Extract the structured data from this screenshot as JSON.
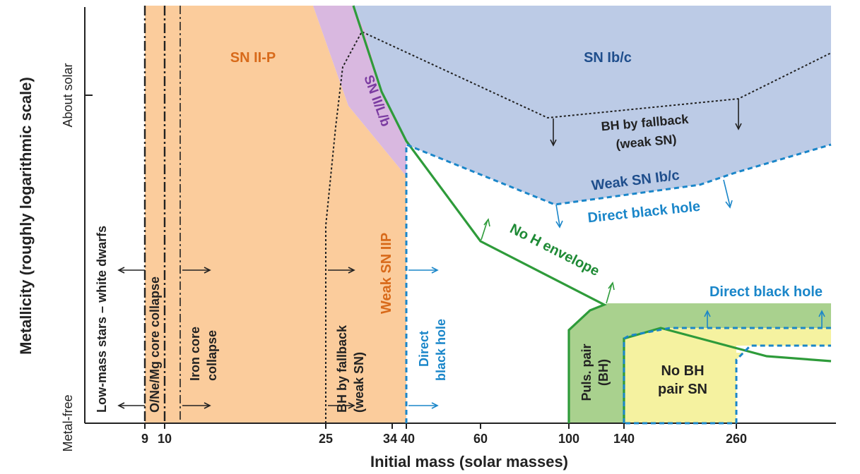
{
  "axes": {
    "x_label": "Initial mass (solar masses)",
    "y_label": "Metallicity (roughly logarithmic scale)",
    "x_ticks": [
      "9",
      "10",
      "25",
      "34",
      "40",
      "60",
      "100",
      "140",
      "260"
    ],
    "y_ticks": [
      "Metal-free",
      "About solar"
    ]
  },
  "regions": {
    "sn_iip": "SN II-P",
    "sn_iil_b": "SN II/L/b",
    "sn_ibc": "SN Ib/c",
    "bh_fallback_top_1": "BH by fallback",
    "bh_fallback_top_2": "(weak SN)",
    "weak_sn_ibc": "Weak SN Ib/c",
    "direct_bh_top": "Direct black hole",
    "weak_sn_iip": "Weak SN IIP",
    "no_h_envelope": "No H envelope",
    "direct_bh_right": "Direct black hole",
    "puls_pair_1": "Puls. pair",
    "puls_pair_2": "(BH)",
    "no_bh_pair_1": "No BH",
    "no_bh_pair_2": "pair SN"
  },
  "vertical_labels": {
    "low_mass": "Low-mass stars – white dwarfs",
    "onemg": "O/Ne/Mg core collapse",
    "iron_1": "Iron core",
    "iron_2": "collapse",
    "bh_fallback_1": "BH by fallback",
    "bh_fallback_2": "(weak SN)",
    "direct_bh_1": "Direct",
    "direct_bh_2": "black hole"
  },
  "colors": {
    "orange": "#fbcc9c",
    "purple": "#d9b8e0",
    "blue": "#bccbe6",
    "green_region": "#a9d18e",
    "yellow": "#f5f2a0",
    "green_line": "#2e9b3a",
    "blue_dash": "#1a86c9",
    "dark_blue_text": "#1f4e8c",
    "orange_text": "#d86a1a",
    "purple_text": "#7a3aa0",
    "green_text": "#1e8a35"
  }
}
